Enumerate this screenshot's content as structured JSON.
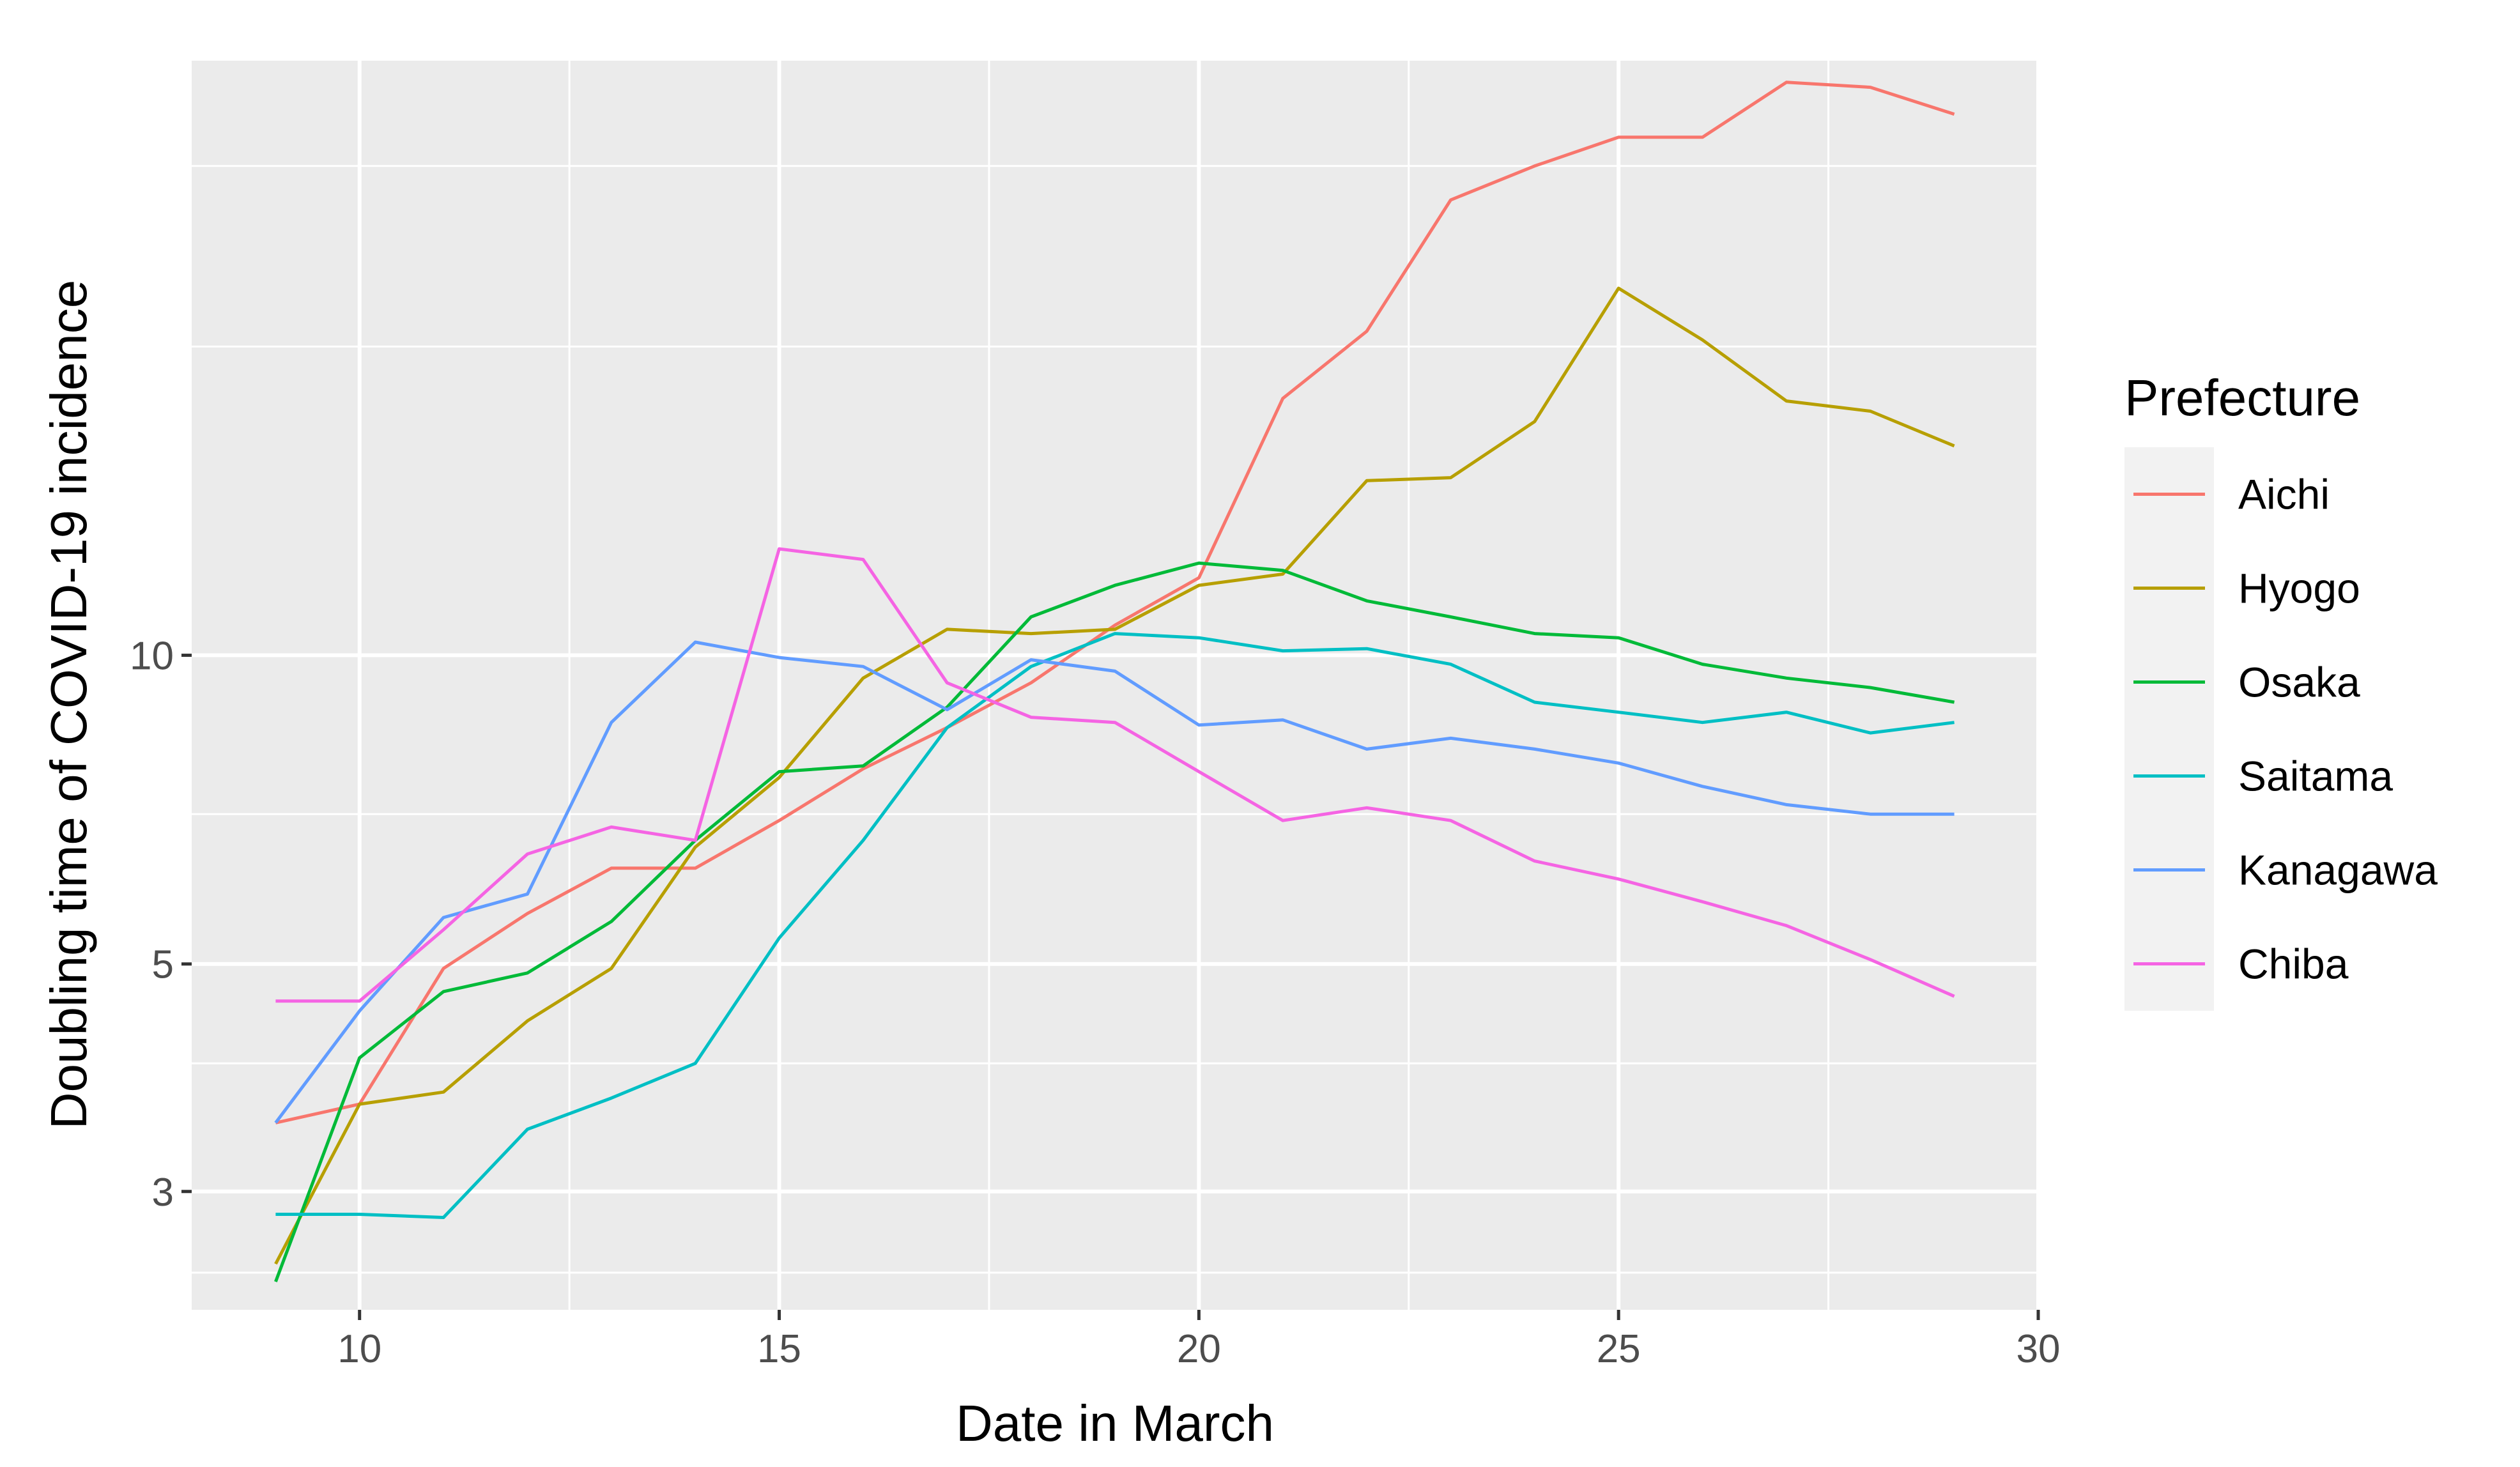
{
  "chart_data": {
    "type": "line",
    "title": "",
    "xlabel": "Date in March",
    "ylabel": "Doubling time of COVID-19 incidence",
    "x_scale": "linear",
    "y_scale": "log",
    "xlim": [
      8,
      30
    ],
    "ylim": [
      2.3,
      38
    ],
    "x_ticks": [
      10,
      15,
      20,
      25,
      30
    ],
    "y_ticks": [
      3,
      5,
      10
    ],
    "y_minor_gridlines": [
      2.5,
      4,
      7,
      20,
      30
    ],
    "grid": true,
    "background": "#ebebeb",
    "legend": {
      "title": "Prefecture",
      "position": "right"
    },
    "x": [
      9,
      10,
      11,
      12,
      13,
      14,
      15,
      16,
      17,
      18,
      19,
      20,
      21,
      22,
      23,
      24,
      25,
      26,
      27,
      28,
      29
    ],
    "series": [
      {
        "name": "Aichi",
        "color": "#F8766D",
        "values": [
          3.5,
          3.65,
          4.95,
          5.6,
          6.2,
          6.2,
          6.9,
          7.75,
          8.5,
          9.4,
          10.7,
          11.9,
          17.8,
          20.7,
          27.8,
          30.0,
          32.0,
          32.0,
          36.2,
          35.8,
          33.7
        ]
      },
      {
        "name": "Hyogo",
        "color": "#B79F00",
        "values": [
          2.55,
          3.65,
          3.75,
          4.4,
          4.95,
          6.5,
          7.6,
          9.5,
          10.6,
          10.5,
          10.6,
          11.7,
          12.0,
          14.8,
          14.9,
          16.9,
          22.8,
          20.3,
          17.7,
          17.3,
          16.0
        ]
      },
      {
        "name": "Osaka",
        "color": "#00BA38",
        "values": [
          2.45,
          4.05,
          4.7,
          4.9,
          5.5,
          6.6,
          7.7,
          7.8,
          8.9,
          10.9,
          11.7,
          12.3,
          12.1,
          11.3,
          10.9,
          10.5,
          10.4,
          9.8,
          9.5,
          9.3,
          9.0
        ]
      },
      {
        "name": "Saitama",
        "color": "#00BFC4",
        "values": [
          2.85,
          2.85,
          2.83,
          3.45,
          3.7,
          4.0,
          5.3,
          6.6,
          8.5,
          9.75,
          10.5,
          10.4,
          10.1,
          10.15,
          9.8,
          9.0,
          8.8,
          8.6,
          8.8,
          8.4,
          8.6
        ]
      },
      {
        "name": "Kanagawa",
        "color": "#619CFF",
        "values": [
          3.5,
          4.5,
          5.55,
          5.85,
          8.6,
          10.3,
          9.95,
          9.75,
          8.85,
          9.9,
          9.65,
          8.55,
          8.65,
          8.1,
          8.3,
          8.1,
          7.85,
          7.45,
          7.15,
          7.0,
          7.0
        ]
      },
      {
        "name": "Chiba",
        "color": "#F564E3",
        "values": [
          4.6,
          4.6,
          5.4,
          6.4,
          6.8,
          6.6,
          12.7,
          12.4,
          9.4,
          8.7,
          8.6,
          7.7,
          6.9,
          7.1,
          6.9,
          6.3,
          6.05,
          5.75,
          5.45,
          5.05,
          4.65
        ]
      }
    ]
  }
}
